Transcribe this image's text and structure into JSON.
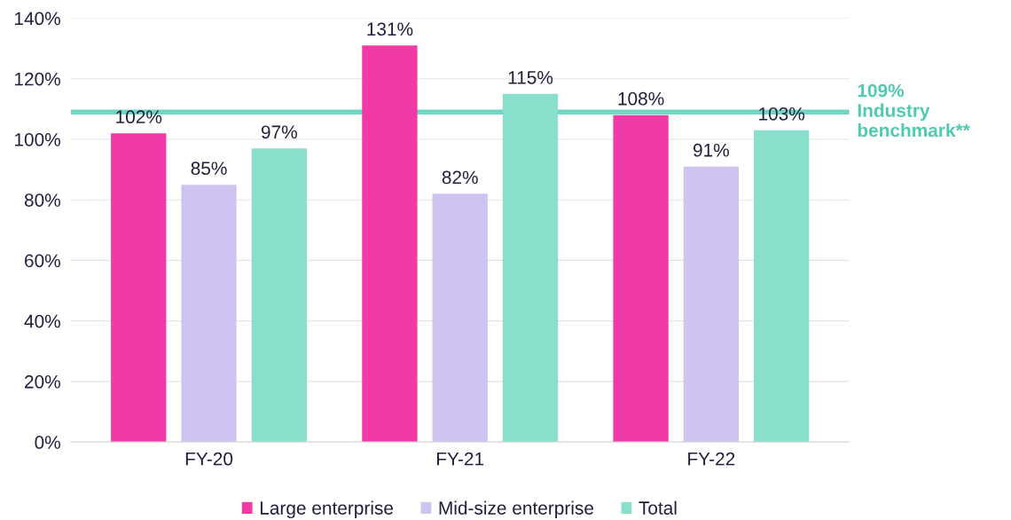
{
  "chart_data": {
    "type": "bar",
    "categories": [
      "FY-20",
      "FY-21",
      "FY-22"
    ],
    "series": [
      {
        "name": "Large enterprise",
        "color": "#f03aa6",
        "values": [
          102,
          131,
          108
        ],
        "value_labels": [
          "102%",
          "131%",
          "108%"
        ]
      },
      {
        "name": "Mid-size enterprise",
        "color": "#cfc3f2",
        "values": [
          85,
          82,
          91
        ],
        "value_labels": [
          "85%",
          "82%",
          "91%"
        ]
      },
      {
        "name": "Total",
        "color": "#88dfcc",
        "values": [
          97,
          115,
          103
        ],
        "value_labels": [
          "97%",
          "115%",
          "103%"
        ]
      }
    ],
    "ylim": [
      0,
      140
    ],
    "yticks": [
      {
        "value": 0,
        "label": "0%"
      },
      {
        "value": 20,
        "label": "20%"
      },
      {
        "value": 40,
        "label": "40%"
      },
      {
        "value": 60,
        "label": "60%"
      },
      {
        "value": 80,
        "label": "80%"
      },
      {
        "value": 100,
        "label": "100%"
      },
      {
        "value": 120,
        "label": "120%"
      },
      {
        "value": 140,
        "label": "140%"
      }
    ],
    "ref_lines": [
      {
        "axis": "y",
        "value": 109,
        "label": "109%\nIndustry\nbenchmark**",
        "color": "#6fd6c2"
      }
    ],
    "grid": "y",
    "legend": "bottom"
  }
}
